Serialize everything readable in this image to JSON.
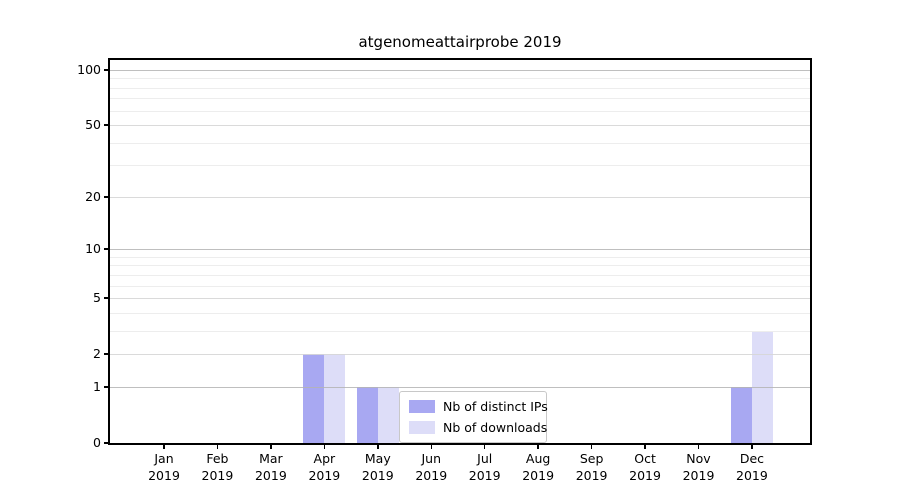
{
  "title": "atgenomeattairprobe 2019",
  "legend": {
    "position": "lower center",
    "items": [
      {
        "label": "Nb of distinct IPs",
        "color": "#a8a8f2"
      },
      {
        "label": "Nb of downloads",
        "color": "#ddddf8"
      }
    ]
  },
  "chart_data": {
    "type": "bar",
    "title": "atgenomeattairprobe 2019",
    "x_ticks": [
      {
        "month": "Jan",
        "year": "2019"
      },
      {
        "month": "Feb",
        "year": "2019"
      },
      {
        "month": "Mar",
        "year": "2019"
      },
      {
        "month": "Apr",
        "year": "2019"
      },
      {
        "month": "May",
        "year": "2019"
      },
      {
        "month": "Jun",
        "year": "2019"
      },
      {
        "month": "Jul",
        "year": "2019"
      },
      {
        "month": "Aug",
        "year": "2019"
      },
      {
        "month": "Sep",
        "year": "2019"
      },
      {
        "month": "Oct",
        "year": "2019"
      },
      {
        "month": "Nov",
        "year": "2019"
      },
      {
        "month": "Dec",
        "year": "2019"
      }
    ],
    "series": [
      {
        "name": "Nb of distinct IPs",
        "color": "#a8a8f2",
        "values": [
          0,
          0,
          0,
          2,
          1,
          0,
          0,
          0,
          0,
          0,
          0,
          1
        ]
      },
      {
        "name": "Nb of downloads",
        "color": "#ddddf8",
        "values": [
          0,
          0,
          0,
          2,
          1,
          0,
          0,
          0,
          0,
          0,
          0,
          3
        ]
      }
    ],
    "y_axis": {
      "scale": "log1p",
      "ylim": [
        0,
        113
      ],
      "major_tick_labels": [
        0,
        1,
        2,
        5,
        10,
        20,
        50,
        100
      ],
      "decade_gridlines": [
        1,
        10,
        100
      ],
      "mid_gridlines": [
        2,
        5,
        20,
        50
      ],
      "minor_gridlines": [
        3,
        4,
        6,
        7,
        8,
        9,
        30,
        40,
        60,
        70,
        80,
        90
      ]
    },
    "grid": true,
    "legend_position": "lower center"
  },
  "colors": {
    "bar_distinct_ips": "#a8a8f2",
    "bar_downloads": "#ddddf8",
    "grid_decade": "#b4b4b4",
    "grid_mid": "#d6d6d6",
    "grid_minor": "#ededed",
    "spine": "#000000",
    "background": "#ffffff",
    "text": "#000000"
  }
}
